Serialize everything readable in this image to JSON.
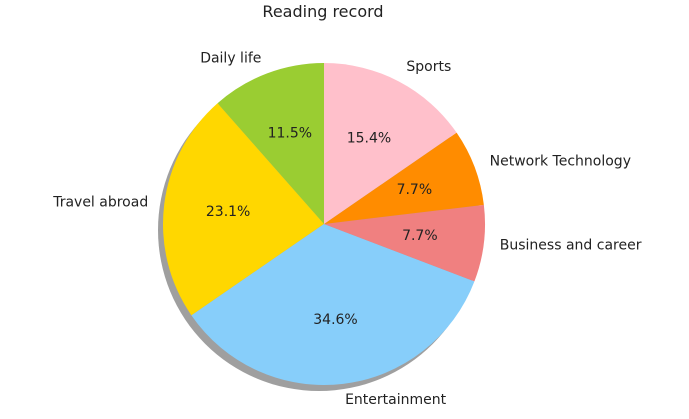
{
  "chart_data": {
    "type": "pie",
    "title": "Reading record",
    "start_angle_deg": 90,
    "direction": "counterclockwise",
    "shadow": true,
    "slices": [
      {
        "label": "Daily life",
        "value": 11.5,
        "pct_text": "11.5%",
        "color": "#9ACD32"
      },
      {
        "label": "Travel abroad",
        "value": 23.1,
        "pct_text": "23.1%",
        "color": "#FFD700"
      },
      {
        "label": "Entertainment",
        "value": 34.6,
        "pct_text": "34.6%",
        "color": "#87CEFA"
      },
      {
        "label": "Business and career",
        "value": 7.7,
        "pct_text": "7.7%",
        "color": "#F08080"
      },
      {
        "label": "Network Technology",
        "value": 7.7,
        "pct_text": "7.7%",
        "color": "#FF8C00"
      },
      {
        "label": "Sports",
        "value": 15.4,
        "pct_text": "15.4%",
        "color": "#FFC0CB"
      }
    ]
  }
}
